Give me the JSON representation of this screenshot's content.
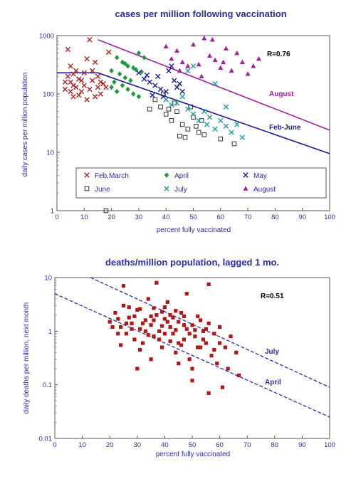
{
  "chart_data": [
    {
      "type": "scatter",
      "title": "cases per million following vaccination",
      "xlabel": "percent fully vaccinated",
      "ylabel": "daily cases per million population",
      "xlim": [
        0,
        100
      ],
      "ylim": [
        1,
        1000
      ],
      "yscale": "log",
      "xticks": [
        "0",
        "10",
        "20",
        "30",
        "40",
        "50",
        "60",
        "70",
        "80",
        "90",
        "100"
      ],
      "yticks": [
        "1",
        "10",
        "100",
        "1000"
      ],
      "annotation": "R=0.76",
      "legend_position": "bottom",
      "series": [
        {
          "name": "Feb,March",
          "color": "#b02020",
          "marker": "x",
          "points": [
            [
              4,
              580
            ],
            [
              5,
              300
            ],
            [
              6,
              220
            ],
            [
              3,
              160
            ],
            [
              7,
              130
            ],
            [
              5,
              110
            ],
            [
              8,
              95
            ],
            [
              9,
              170
            ],
            [
              10,
              140
            ],
            [
              12,
              850
            ],
            [
              11,
              400
            ],
            [
              14,
              350
            ],
            [
              13,
              250
            ],
            [
              15,
              200
            ],
            [
              16,
              160
            ],
            [
              6,
              90
            ],
            [
              4,
              200
            ],
            [
              7,
              250
            ],
            [
              8,
              180
            ],
            [
              3,
              120
            ],
            [
              12,
              120
            ],
            [
              14,
              90
            ],
            [
              16,
              100
            ],
            [
              18,
              130
            ],
            [
              10,
              230
            ],
            [
              5,
              160
            ],
            [
              9,
              110
            ],
            [
              13,
              170
            ],
            [
              15,
              130
            ],
            [
              17,
              150
            ],
            [
              11,
              80
            ],
            [
              6,
              140
            ],
            [
              19,
              520
            ]
          ]
        },
        {
          "name": "April",
          "color": "#1a9a3a",
          "marker": "diamond",
          "points": [
            [
              22,
              420
            ],
            [
              24,
              350
            ],
            [
              26,
              300
            ],
            [
              28,
              280
            ],
            [
              20,
              250
            ],
            [
              23,
              220
            ],
            [
              25,
              190
            ],
            [
              27,
              170
            ],
            [
              21,
              160
            ],
            [
              30,
              500
            ],
            [
              32,
              420
            ],
            [
              29,
              260
            ],
            [
              24,
              140
            ],
            [
              26,
              120
            ],
            [
              22,
              110
            ],
            [
              28,
              100
            ],
            [
              30,
              90
            ],
            [
              25,
              330
            ],
            [
              20,
              130
            ],
            [
              31,
              240
            ]
          ]
        },
        {
          "name": "May",
          "color": "#1a1a9a",
          "marker": "x",
          "points": [
            [
              30,
              230
            ],
            [
              32,
              180
            ],
            [
              34,
              160
            ],
            [
              36,
              140
            ],
            [
              38,
              120
            ],
            [
              40,
              110
            ],
            [
              35,
              95
            ],
            [
              37,
              200
            ],
            [
              41,
              250
            ],
            [
              43,
              170
            ],
            [
              39,
              90
            ],
            [
              44,
              130
            ],
            [
              46,
              110
            ],
            [
              42,
              300
            ],
            [
              33,
              210
            ],
            [
              45,
              150
            ]
          ]
        },
        {
          "name": "June",
          "color": "#333333",
          "marker": "square",
          "points": [
            [
              36,
              80
            ],
            [
              38,
              60
            ],
            [
              40,
              45
            ],
            [
              42,
              35
            ],
            [
              44,
              50
            ],
            [
              46,
              30
            ],
            [
              48,
              25
            ],
            [
              50,
              40
            ],
            [
              52,
              22
            ],
            [
              47,
              18
            ],
            [
              54,
              20
            ],
            [
              39,
              100
            ],
            [
              43,
              70
            ],
            [
              34,
              55
            ],
            [
              49,
              60
            ],
            [
              51,
              28
            ],
            [
              53,
              35
            ],
            [
              41,
              55
            ],
            [
              60,
              17
            ],
            [
              65,
              14
            ],
            [
              45,
              19
            ],
            [
              18,
              1
            ]
          ]
        },
        {
          "name": "July",
          "color": "#1aa0a0",
          "marker": "x",
          "points": [
            [
              40,
              80
            ],
            [
              44,
              70
            ],
            [
              48,
              55
            ],
            [
              50,
              45
            ],
            [
              52,
              35
            ],
            [
              55,
              30
            ],
            [
              58,
              25
            ],
            [
              60,
              35
            ],
            [
              62,
              28
            ],
            [
              64,
              22
            ],
            [
              66,
              30
            ],
            [
              68,
              18
            ],
            [
              56,
              40
            ],
            [
              54,
              50
            ],
            [
              46,
              90
            ],
            [
              42,
              65
            ],
            [
              50,
              300
            ],
            [
              48,
              250
            ],
            [
              58,
              150
            ],
            [
              62,
              60
            ]
          ]
        },
        {
          "name": "August",
          "color": "#a020a0",
          "marker": "triangle",
          "points": [
            [
              40,
              650
            ],
            [
              42,
              400
            ],
            [
              44,
              550
            ],
            [
              46,
              350
            ],
            [
              48,
              300
            ],
            [
              50,
              700
            ],
            [
              52,
              320
            ],
            [
              54,
              900
            ],
            [
              56,
              450
            ],
            [
              58,
              380
            ],
            [
              60,
              280
            ],
            [
              62,
              600
            ],
            [
              64,
              250
            ],
            [
              66,
              500
            ],
            [
              68,
              350
            ],
            [
              70,
              220
            ],
            [
              72,
              300
            ],
            [
              74,
              400
            ],
            [
              45,
              250
            ],
            [
              53,
              200
            ],
            [
              61,
              350
            ],
            [
              57,
              850
            ]
          ]
        }
      ],
      "fit_lines": [
        {
          "label": "August",
          "color": "#a020a0",
          "x": [
            15,
            100
          ],
          "y": [
            850,
            24
          ]
        },
        {
          "label": "Feb-June",
          "color": "#1a1a9a",
          "x": [
            0,
            15,
            100
          ],
          "y": [
            230,
            230,
            9.5
          ]
        }
      ]
    },
    {
      "type": "scatter",
      "title": "deaths/million population, lagged 1 mo.",
      "xlabel": "percent fully vaccinated",
      "ylabel": "daily deaths per million, next month",
      "xlim": [
        0,
        100
      ],
      "ylim": [
        0.01,
        10
      ],
      "yscale": "log",
      "xticks": [
        "0",
        "10",
        "20",
        "30",
        "40",
        "50",
        "60",
        "70",
        "80",
        "90",
        "100"
      ],
      "yticks": [
        "0.01",
        "0.1",
        "1",
        "10"
      ],
      "annotation": "R=0.51",
      "series": [
        {
          "name": "",
          "color": "#b01818",
          "marker": "square",
          "points": [
            [
              20,
              1.5
            ],
            [
              22,
              2.2
            ],
            [
              24,
              1.2
            ],
            [
              25,
              3.0
            ],
            [
              26,
              0.9
            ],
            [
              27,
              1.8
            ],
            [
              28,
              1.4
            ],
            [
              29,
              0.7
            ],
            [
              30,
              2.5
            ],
            [
              31,
              1.1
            ],
            [
              32,
              0.6
            ],
            [
              33,
              1.6
            ],
            [
              34,
              4.0
            ],
            [
              35,
              1.3
            ],
            [
              36,
              0.8
            ],
            [
              37,
              2.0
            ],
            [
              38,
              1.0
            ],
            [
              39,
              0.5
            ],
            [
              40,
              1.7
            ],
            [
              41,
              3.5
            ],
            [
              42,
              1.2
            ],
            [
              43,
              0.9
            ],
            [
              44,
              0.4
            ],
            [
              45,
              1.5
            ],
            [
              46,
              2.2
            ],
            [
              47,
              0.7
            ],
            [
              48,
              1.1
            ],
            [
              49,
              0.3
            ],
            [
              50,
              1.3
            ],
            [
              51,
              0.8
            ],
            [
              52,
              1.9
            ],
            [
              53,
              0.5
            ],
            [
              54,
              1.0
            ],
            [
              55,
              0.6
            ],
            [
              56,
              1.4
            ],
            [
              57,
              0.35
            ],
            [
              58,
              0.9
            ],
            [
              59,
              0.25
            ],
            [
              60,
              1.2
            ],
            [
              62,
              0.5
            ],
            [
              64,
              0.8
            ],
            [
              66,
              0.4
            ],
            [
              67,
              0.15
            ],
            [
              23,
              0.9
            ],
            [
              26,
              1.4
            ],
            [
              29,
              1.9
            ],
            [
              31,
              2.6
            ],
            [
              33,
              1.0
            ],
            [
              36,
              1.6
            ],
            [
              38,
              0.7
            ],
            [
              40,
              0.9
            ],
            [
              43,
              1.8
            ],
            [
              45,
              0.6
            ],
            [
              47,
              1.3
            ],
            [
              49,
              0.9
            ],
            [
              52,
              0.5
            ],
            [
              55,
              1.1
            ],
            [
              37,
              8.0
            ],
            [
              25,
              7.0
            ],
            [
              48,
              5.0
            ],
            [
              56,
              7.5
            ],
            [
              35,
              0.3
            ],
            [
              30,
              0.2
            ],
            [
              45,
              0.25
            ],
            [
              56,
              0.07
            ],
            [
              50,
              0.2
            ],
            [
              28,
              1.1
            ],
            [
              32,
              1.4
            ],
            [
              34,
              0.85
            ],
            [
              39,
              1.25
            ],
            [
              42,
              0.65
            ],
            [
              44,
              1.05
            ],
            [
              46,
              0.55
            ],
            [
              21,
              1.2
            ],
            [
              24,
              0.55
            ],
            [
              27,
              2.8
            ],
            [
              50,
              0.12
            ],
            [
              61,
              0.09
            ],
            [
              40,
              2.8
            ],
            [
              53,
              1.6
            ],
            [
              58,
              0.45
            ],
            [
              63,
              0.2
            ],
            [
              36,
              2.7
            ],
            [
              41,
              1.5
            ],
            [
              44,
              2.4
            ],
            [
              47,
              1.9
            ],
            [
              51,
              1.05
            ],
            [
              54,
              0.7
            ],
            [
              60,
              0.6
            ],
            [
              35,
              1.9
            ],
            [
              39,
              2.3
            ],
            [
              42,
              2.0
            ],
            [
              23,
              1.7
            ],
            [
              31,
              0.45
            ]
          ]
        }
      ],
      "fit_lines": [
        {
          "label": "July",
          "color": "#2b2bb0",
          "x": [
            13,
            100
          ],
          "y": [
            10,
            0.09
          ]
        },
        {
          "label": "April",
          "color": "#2b2bb0",
          "x": [
            0,
            100
          ],
          "y": [
            5,
            0.025
          ]
        }
      ]
    }
  ]
}
